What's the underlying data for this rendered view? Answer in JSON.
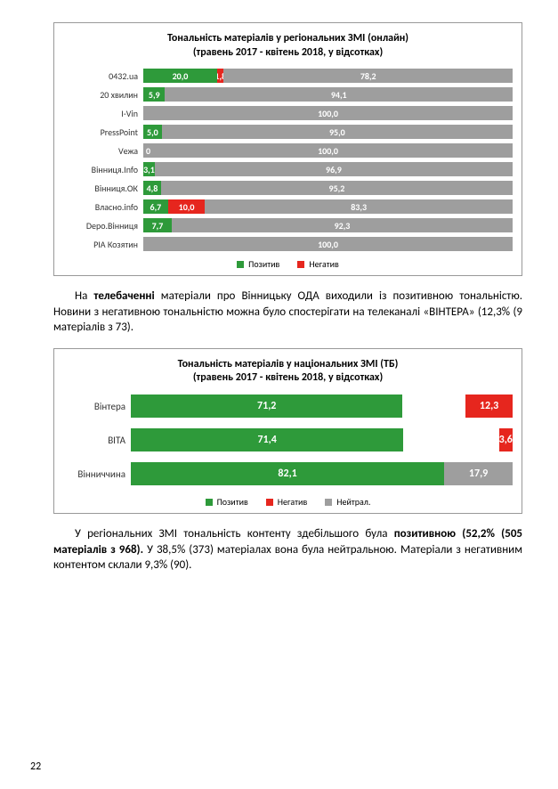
{
  "page_number": "22",
  "colors": {
    "positive": "#2e9a3a",
    "negative": "#e6261e",
    "neutral": "#9e9e9e",
    "remainder": "#9e9e9e"
  },
  "chart1": {
    "title_line1": "Тональність матеріалів у регіональних ЗМІ (онлайн)",
    "title_line2": "(травень 2017 - квітень 2018, у відсотках)",
    "legend": {
      "positive": "Позитив",
      "negative": "Негатив"
    },
    "rows": [
      {
        "label": "0432.ua",
        "positive": 20.0,
        "negative": 1.8,
        "remainder": 78.2,
        "show_pos": "20,0",
        "show_neg": "1,8",
        "show_rem": "78,2"
      },
      {
        "label": "20 хвилин",
        "positive": 5.9,
        "negative": 0,
        "remainder": 94.1,
        "show_pos": "5,9",
        "show_neg": "",
        "show_rem": "94,1"
      },
      {
        "label": "I-Vin",
        "positive": 0,
        "negative": 0,
        "remainder": 100.0,
        "show_pos": "",
        "show_neg": "",
        "show_rem": "100,0"
      },
      {
        "label": "PressPoint",
        "positive": 5.0,
        "negative": 0,
        "remainder": 95.0,
        "show_pos": "5,0",
        "show_neg": "",
        "show_rem": "95,0"
      },
      {
        "label": "Vежа",
        "positive": 0,
        "negative": 0,
        "remainder": 100.0,
        "show_pos": "0",
        "show_neg": "",
        "show_rem": "100,0"
      },
      {
        "label": "Вінниця.Info",
        "positive": 3.1,
        "negative": 0,
        "remainder": 96.9,
        "show_pos": "3,1",
        "show_neg": "",
        "show_rem": "96,9"
      },
      {
        "label": "Вінниця.ОК",
        "positive": 4.8,
        "negative": 0,
        "remainder": 95.2,
        "show_pos": "4,8",
        "show_neg": "",
        "show_rem": "95,2"
      },
      {
        "label": "Власно.info",
        "positive": 6.7,
        "negative": 10.0,
        "remainder": 83.3,
        "show_pos": "6,7",
        "show_neg": "10,0",
        "show_rem": "83,3"
      },
      {
        "label": "Depo.Вінниця",
        "positive": 7.7,
        "negative": 0,
        "remainder": 92.3,
        "show_pos": "7,7",
        "show_neg": "",
        "show_rem": "92,3"
      },
      {
        "label": "РІА Козятин",
        "positive": 0,
        "negative": 0,
        "remainder": 100.0,
        "show_pos": "",
        "show_neg": "",
        "show_rem": "100,0"
      }
    ]
  },
  "para1": {
    "prefix": "На ",
    "bold1": "телебаченні",
    "rest": " матеріали про Вінницьку ОДА виходили із позитивною тональністю. Новини з негативною тональністю можна було спостерігати на телеканалі «ВІНТЕРА» (12,3% (9 матеріалів з 73)."
  },
  "chart2": {
    "title_line1": "Тональність матеріалів у національних ЗМІ (ТБ)",
    "title_line2": "(травень 2017 - квітень 2018, у відсотках)",
    "legend": {
      "positive": "Позитив",
      "negative": "Негатив",
      "neutral": "Нейтрал."
    },
    "rows": [
      {
        "label": "Вінтера",
        "positive": 71.2,
        "negative": 12.3,
        "neutral": 0,
        "show_pos": "71,2",
        "show_neg": "12,3",
        "show_neu": ""
      },
      {
        "label": "ВІТА",
        "positive": 71.4,
        "negative": 3.6,
        "neutral": 0,
        "show_pos": "71,4",
        "show_neg": "3,6",
        "show_neu": ""
      },
      {
        "label": "Вінниччина",
        "positive": 82.1,
        "negative": 0,
        "neutral": 17.9,
        "show_pos": "82,1",
        "show_neg": "",
        "show_neu": "17,9"
      }
    ]
  },
  "para2": {
    "prefix": "У регіональних ЗМІ тональність контенту здебільшого була ",
    "bold1": "позитивною (52,2% (505 матеріалів з 968).",
    "rest": " У 38,5% (373) матеріалах вона була нейтральною. Матеріали з негативним контентом склали 9,3% (90)."
  }
}
